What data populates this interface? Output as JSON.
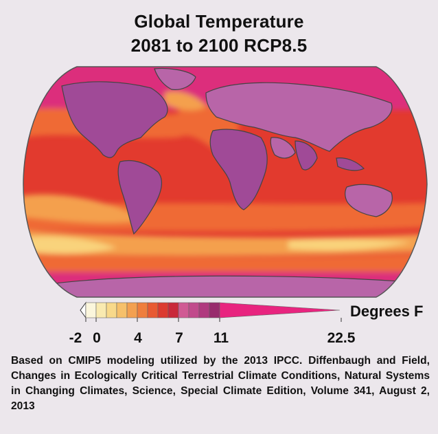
{
  "title_line1": "Global Temperature",
  "title_line2": "2081 to 2100 RCP8.5",
  "colorbar": {
    "units": "Degrees F",
    "tick_labels": [
      "-2",
      "0",
      "4",
      "7",
      "11",
      "22.5"
    ],
    "range": [
      -2,
      22.5
    ],
    "colors": [
      "#fbf6dc",
      "#f9eab0",
      "#f8d98a",
      "#f6c06a",
      "#f3a050",
      "#ef7e3d",
      "#e85a33",
      "#dc3a30",
      "#c9283a",
      "#d05a94",
      "#c14b8c",
      "#b03a7f",
      "#982b6d",
      "#e8247f"
    ]
  },
  "map": {
    "colors": {
      "ocean_background": "#e23a2e",
      "polar": "#dc2e7c",
      "land": "#a04a97",
      "land_light": "#b865a8",
      "warm_orange": "#ef6b36",
      "light_orange": "#f4a04d",
      "pale": "#f9d37c",
      "border": "#444444"
    }
  },
  "source_text": "Based on CMIP5 modeling utilized by the 2013 IPCC. Diffenbaugh and Field, Changes in Ecologically Critical Terrestrial Climate Conditions, Natural Systems in Changing Climates, Science, Special Climate Edition, Volume 341, August 2, 2013"
}
